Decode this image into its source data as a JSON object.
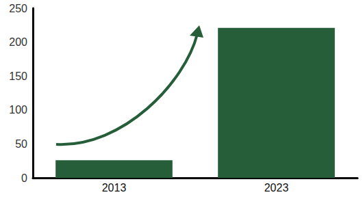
{
  "chart_data": {
    "type": "bar",
    "categories": [
      "2013",
      "2023"
    ],
    "values": [
      26,
      221
    ],
    "color": "#265e3a",
    "ylim": [
      0,
      250
    ],
    "yticks": [
      0,
      50,
      100,
      150,
      200,
      250
    ],
    "grid": false
  }
}
